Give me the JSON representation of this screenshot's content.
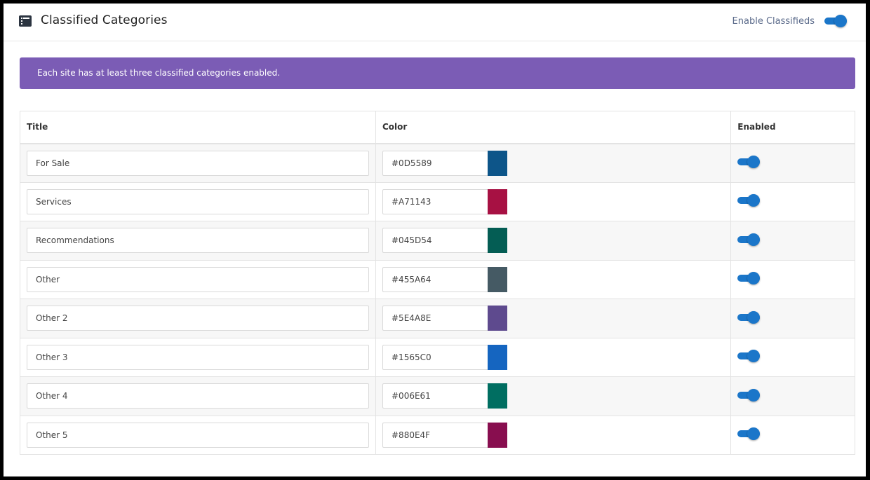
{
  "header": {
    "title": "Classified Categories",
    "enable_label": "Enable Classifieds",
    "enabled": true
  },
  "banner": {
    "text": "Each site has at least three classified categories enabled."
  },
  "table": {
    "headers": {
      "title": "Title",
      "color": "Color",
      "enabled": "Enabled"
    },
    "rows": [
      {
        "title": "For Sale",
        "hex": "#0D5589",
        "color": "#0D5589",
        "enabled": true
      },
      {
        "title": "Services",
        "hex": "#A71143",
        "color": "#A71143",
        "enabled": true
      },
      {
        "title": "Recommendations",
        "hex": "#045D54",
        "color": "#045D54",
        "enabled": true
      },
      {
        "title": "Other",
        "hex": "#455A64",
        "color": "#455A64",
        "enabled": true
      },
      {
        "title": "Other 2",
        "hex": "#5E4A8E",
        "color": "#5E4A8E",
        "enabled": true
      },
      {
        "title": "Other 3",
        "hex": "#1565C0",
        "color": "#1565C0",
        "enabled": true
      },
      {
        "title": "Other 4",
        "hex": "#006E61",
        "color": "#006E61",
        "enabled": true
      },
      {
        "title": "Other 5",
        "hex": "#880E4F",
        "color": "#880E4F",
        "enabled": true
      }
    ]
  },
  "colors": {
    "accent": "#1b76c9",
    "banner_bg": "#7b5cb5"
  }
}
